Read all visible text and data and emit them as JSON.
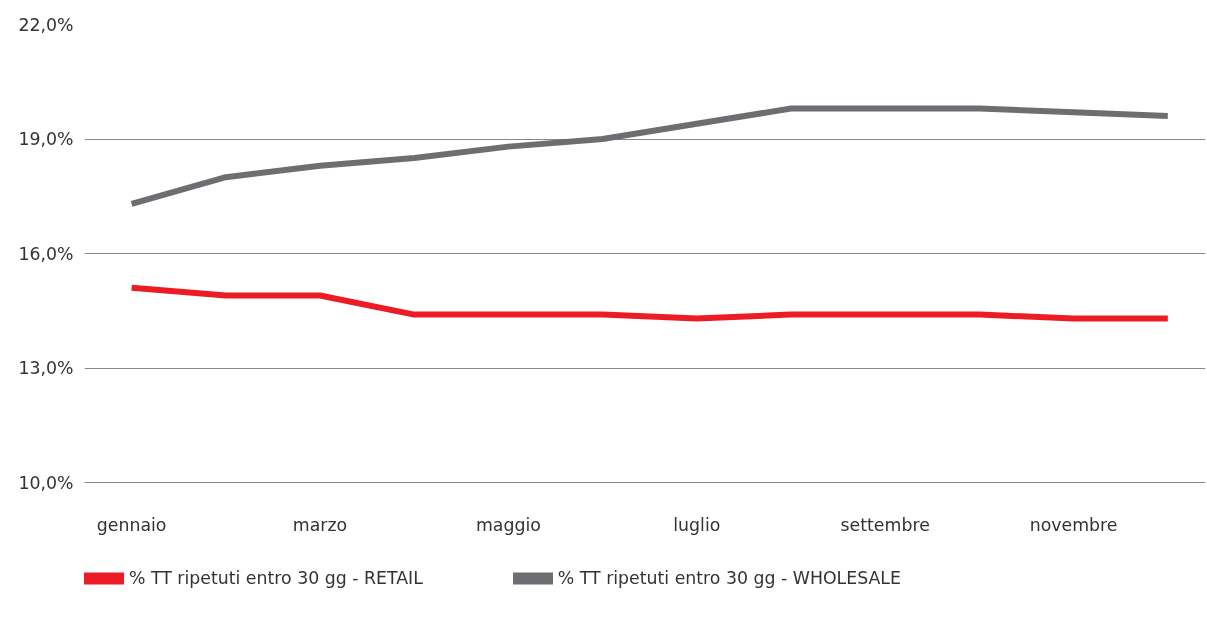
{
  "chart_data": {
    "type": "line",
    "categories": [
      "gennaio",
      null,
      "marzo",
      null,
      "maggio",
      null,
      "luglio",
      null,
      "settembre",
      null,
      "novembre",
      null
    ],
    "series": [
      {
        "name": "% TT ripetuti entro 30 gg - RETAIL",
        "color": "#ed1c24",
        "values": [
          15.1,
          14.9,
          14.9,
          14.4,
          14.4,
          14.4,
          14.3,
          14.4,
          14.4,
          14.4,
          14.3,
          14.3
        ]
      },
      {
        "name": "% TT ripetuti entro 30 gg - WHOLESALE",
        "color": "#6d6e71",
        "values": [
          17.3,
          18.0,
          18.3,
          18.5,
          18.8,
          19.0,
          19.4,
          19.8,
          19.8,
          19.8,
          19.7,
          19.6
        ]
      }
    ],
    "ylim": [
      10,
      22
    ],
    "yticks": [
      {
        "value": 10,
        "label": "10,0%"
      },
      {
        "value": 13,
        "label": "13,0%"
      },
      {
        "value": 16,
        "label": "16,0%"
      },
      {
        "value": 19,
        "label": "19,0%"
      },
      {
        "value": 22,
        "label": "22,0%"
      }
    ],
    "grid": "y",
    "legend": "bottom",
    "marker": "none",
    "line_style": "solid"
  }
}
